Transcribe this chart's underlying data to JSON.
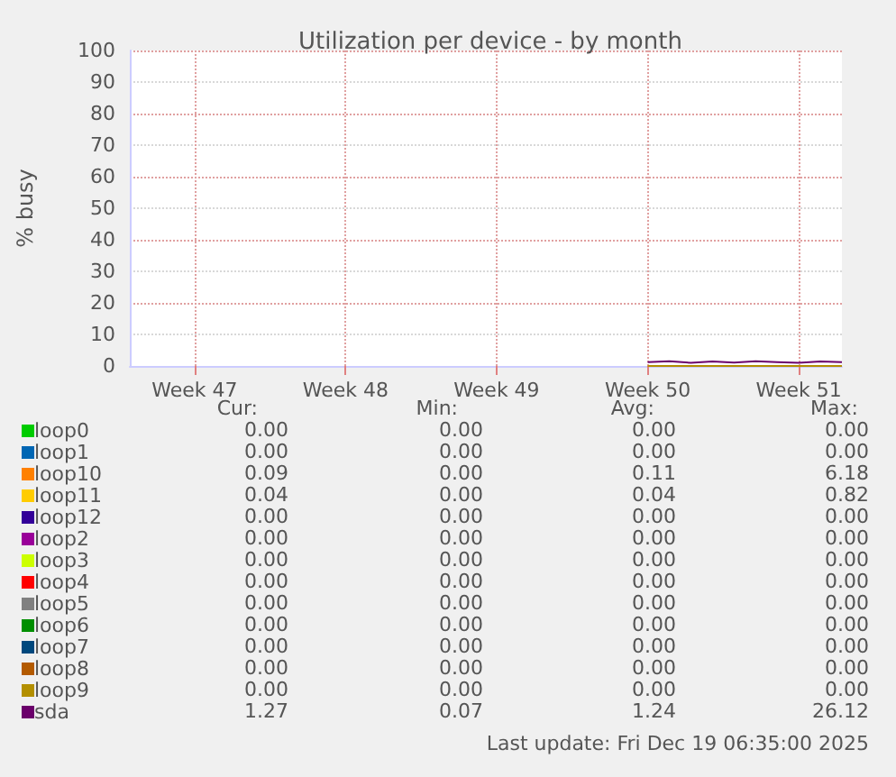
{
  "chart_data": {
    "type": "line",
    "title": "Utilization per device - by month",
    "ylabel": "% busy",
    "categories": [
      null,
      null,
      null,
      "Week 47",
      null,
      null,
      null,
      null,
      null,
      null,
      "Week 48",
      null,
      null,
      null,
      null,
      null,
      null,
      "Week 49",
      null,
      null,
      null,
      null,
      null,
      null,
      "Week 50",
      null,
      null,
      null,
      null,
      null,
      null,
      "Week 51",
      null,
      null
    ],
    "ylim": [
      0,
      100
    ],
    "yticks": [
      0,
      10,
      20,
      30,
      40,
      50,
      60,
      70,
      80,
      90,
      100
    ],
    "grid": true,
    "legend": "bottom",
    "marker": "none",
    "line_style": "solid",
    "series": [
      {
        "name": "loop0",
        "color": "#00cc00",
        "values": [
          null,
          null,
          null,
          null,
          null,
          null,
          null,
          null,
          null,
          null,
          null,
          null,
          null,
          null,
          null,
          null,
          null,
          null,
          null,
          null,
          null,
          null,
          null,
          null,
          null,
          null,
          null,
          null,
          null,
          null,
          null,
          null,
          null,
          null
        ]
      },
      {
        "name": "loop1",
        "color": "#0066b3",
        "values": [
          null,
          null,
          null,
          null,
          null,
          null,
          null,
          null,
          null,
          null,
          null,
          null,
          null,
          null,
          null,
          null,
          null,
          null,
          null,
          null,
          null,
          null,
          null,
          null,
          null,
          null,
          null,
          null,
          null,
          null,
          null,
          null,
          null,
          null
        ]
      },
      {
        "name": "loop10",
        "color": "#ff8000",
        "values": [
          null,
          null,
          null,
          null,
          null,
          null,
          null,
          null,
          null,
          null,
          null,
          null,
          null,
          null,
          null,
          null,
          null,
          null,
          null,
          null,
          null,
          null,
          null,
          null,
          null,
          null,
          null,
          null,
          null,
          null,
          null,
          null,
          null,
          null
        ]
      },
      {
        "name": "loop11",
        "color": "#ffcc00",
        "values": [
          null,
          null,
          null,
          null,
          null,
          null,
          null,
          null,
          null,
          null,
          null,
          null,
          null,
          null,
          null,
          null,
          null,
          null,
          null,
          null,
          null,
          null,
          null,
          null,
          null,
          null,
          null,
          null,
          null,
          null,
          null,
          null,
          null,
          null
        ]
      },
      {
        "name": "loop12",
        "color": "#330099",
        "values": [
          null,
          null,
          null,
          null,
          null,
          null,
          null,
          null,
          null,
          null,
          null,
          null,
          null,
          null,
          null,
          null,
          null,
          null,
          null,
          null,
          null,
          null,
          null,
          null,
          null,
          null,
          null,
          null,
          null,
          null,
          null,
          null,
          null,
          null
        ]
      },
      {
        "name": "loop2",
        "color": "#990099",
        "values": [
          null,
          null,
          null,
          null,
          null,
          null,
          null,
          null,
          null,
          null,
          null,
          null,
          null,
          null,
          null,
          null,
          null,
          null,
          null,
          null,
          null,
          null,
          null,
          null,
          null,
          null,
          null,
          null,
          null,
          null,
          null,
          null,
          null,
          null
        ]
      },
      {
        "name": "loop3",
        "color": "#ccff00",
        "values": [
          null,
          null,
          null,
          null,
          null,
          null,
          null,
          null,
          null,
          null,
          null,
          null,
          null,
          null,
          null,
          null,
          null,
          null,
          null,
          null,
          null,
          null,
          null,
          null,
          null,
          null,
          null,
          null,
          null,
          null,
          null,
          null,
          null,
          null
        ]
      },
      {
        "name": "loop4",
        "color": "#ff0000",
        "values": [
          null,
          null,
          null,
          null,
          null,
          null,
          null,
          null,
          null,
          null,
          null,
          null,
          null,
          null,
          null,
          null,
          null,
          null,
          null,
          null,
          null,
          null,
          null,
          null,
          null,
          null,
          null,
          null,
          null,
          null,
          null,
          null,
          null,
          null
        ]
      },
      {
        "name": "loop5",
        "color": "#808080",
        "values": [
          null,
          null,
          null,
          null,
          null,
          null,
          null,
          null,
          null,
          null,
          null,
          null,
          null,
          null,
          null,
          null,
          null,
          null,
          null,
          null,
          null,
          null,
          null,
          null,
          null,
          null,
          null,
          null,
          null,
          null,
          null,
          null,
          null,
          null
        ]
      },
      {
        "name": "loop6",
        "color": "#008f00",
        "values": [
          null,
          null,
          null,
          null,
          null,
          null,
          null,
          null,
          null,
          null,
          null,
          null,
          null,
          null,
          null,
          null,
          null,
          null,
          null,
          null,
          null,
          null,
          null,
          null,
          null,
          null,
          null,
          null,
          null,
          null,
          null,
          null,
          null,
          null
        ]
      },
      {
        "name": "loop7",
        "color": "#00487d",
        "values": [
          null,
          null,
          null,
          null,
          null,
          null,
          null,
          null,
          null,
          null,
          null,
          null,
          null,
          null,
          null,
          null,
          null,
          null,
          null,
          null,
          null,
          null,
          null,
          null,
          null,
          null,
          null,
          null,
          null,
          null,
          null,
          null,
          null,
          null
        ]
      },
      {
        "name": "loop8",
        "color": "#b35a00",
        "values": [
          null,
          null,
          null,
          null,
          null,
          null,
          null,
          null,
          null,
          null,
          null,
          null,
          null,
          null,
          null,
          null,
          null,
          null,
          null,
          null,
          null,
          null,
          null,
          null,
          null,
          null,
          null,
          null,
          null,
          null,
          null,
          null,
          null,
          null
        ]
      },
      {
        "name": "loop9",
        "color": "#b38f00",
        "values": [
          null,
          null,
          null,
          null,
          null,
          null,
          null,
          null,
          null,
          null,
          null,
          null,
          null,
          null,
          null,
          null,
          null,
          null,
          null,
          null,
          null,
          null,
          null,
          null,
          0,
          0,
          0,
          0,
          0,
          0,
          0,
          0,
          0,
          0
        ]
      },
      {
        "name": "sda",
        "color": "#6b006b",
        "values": [
          null,
          null,
          null,
          null,
          null,
          null,
          null,
          null,
          null,
          null,
          null,
          null,
          null,
          null,
          null,
          null,
          null,
          null,
          null,
          null,
          null,
          null,
          null,
          null,
          1.2,
          1.5,
          1.0,
          1.4,
          1.1,
          1.5,
          1.2,
          1.0,
          1.4,
          1.2
        ]
      }
    ],
    "annotations": [
      "Cur:",
      "Min:",
      "Avg:",
      "Max:",
      "0.00",
      "0.00",
      "0.00",
      "0.00",
      "0.00",
      "0.00",
      "0.00",
      "0.00",
      "0.09",
      "0.00",
      "0.11",
      "6.18",
      "0.04",
      "0.00",
      "0.04",
      "0.82",
      "0.00",
      "0.00",
      "0.00",
      "0.00",
      "0.00",
      "0.00",
      "0.00",
      "0.00",
      "0.00",
      "0.00",
      "0.00",
      "0.00",
      "0.00",
      "0.00",
      "0.00",
      "0.00",
      "0.00",
      "0.00",
      "0.00",
      "0.00",
      "0.00",
      "0.00",
      "0.00",
      "0.00",
      "0.00",
      "0.00",
      "0.00",
      "0.00",
      "0.00",
      "0.00",
      "0.00",
      "0.00",
      "0.00",
      "0.00",
      "0.00",
      "0.00",
      "1.27",
      "0.07",
      "1.24",
      "26.12",
      "Last update: Fri Dec 19 06:35:00 2025"
    ]
  }
}
